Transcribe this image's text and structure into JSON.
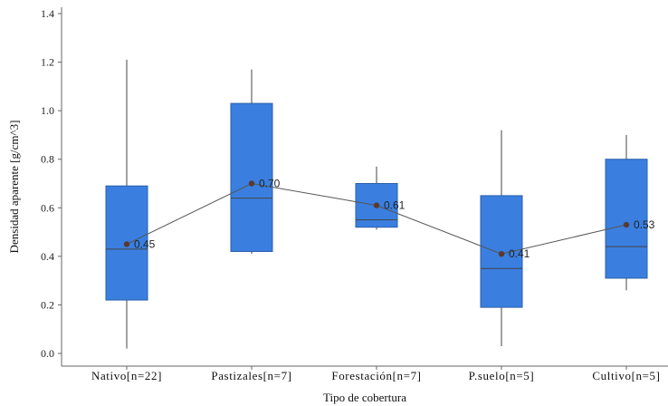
{
  "chart_data": {
    "type": "boxplot",
    "xlabel": "Tipo de cobertura",
    "ylabel": "Densidad aparente [g/cm^3]",
    "ylim": [
      0,
      1.4
    ],
    "yticks": [
      "0.0",
      "0.2",
      "0.4",
      "0.6",
      "0.8",
      "1.0",
      "1.2",
      "1.4"
    ],
    "grid": false,
    "colors": {
      "box_fill": "#3a7fe0",
      "box_stroke": "#2a5fa8",
      "median": "#444444",
      "whisker": "#444444",
      "mean_line": "#555555",
      "mean_point": "#5a3a30",
      "axis": "#666666"
    },
    "categories": [
      {
        "label": "Nativo[n=22]",
        "whisker_low": 0.02,
        "q1": 0.22,
        "median": 0.43,
        "q3": 0.69,
        "whisker_high": 1.21,
        "mean": 0.45,
        "mean_label": "0.45"
      },
      {
        "label": "Pastizales[n=7]",
        "whisker_low": 0.41,
        "q1": 0.42,
        "median": 0.64,
        "q3": 1.03,
        "whisker_high": 1.17,
        "mean": 0.7,
        "mean_label": "0.70"
      },
      {
        "label": "Forestación[n=7]",
        "whisker_low": 0.51,
        "q1": 0.52,
        "median": 0.55,
        "q3": 0.7,
        "whisker_high": 0.77,
        "mean": 0.61,
        "mean_label": "0.61"
      },
      {
        "label": "P.suelo[n=5]",
        "whisker_low": 0.03,
        "q1": 0.19,
        "median": 0.35,
        "q3": 0.65,
        "whisker_high": 0.92,
        "mean": 0.41,
        "mean_label": "0.41"
      },
      {
        "label": "Cultivo[n=5]",
        "whisker_low": 0.26,
        "q1": 0.31,
        "median": 0.44,
        "q3": 0.8,
        "whisker_high": 0.9,
        "mean": 0.53,
        "mean_label": "0.53"
      }
    ]
  }
}
